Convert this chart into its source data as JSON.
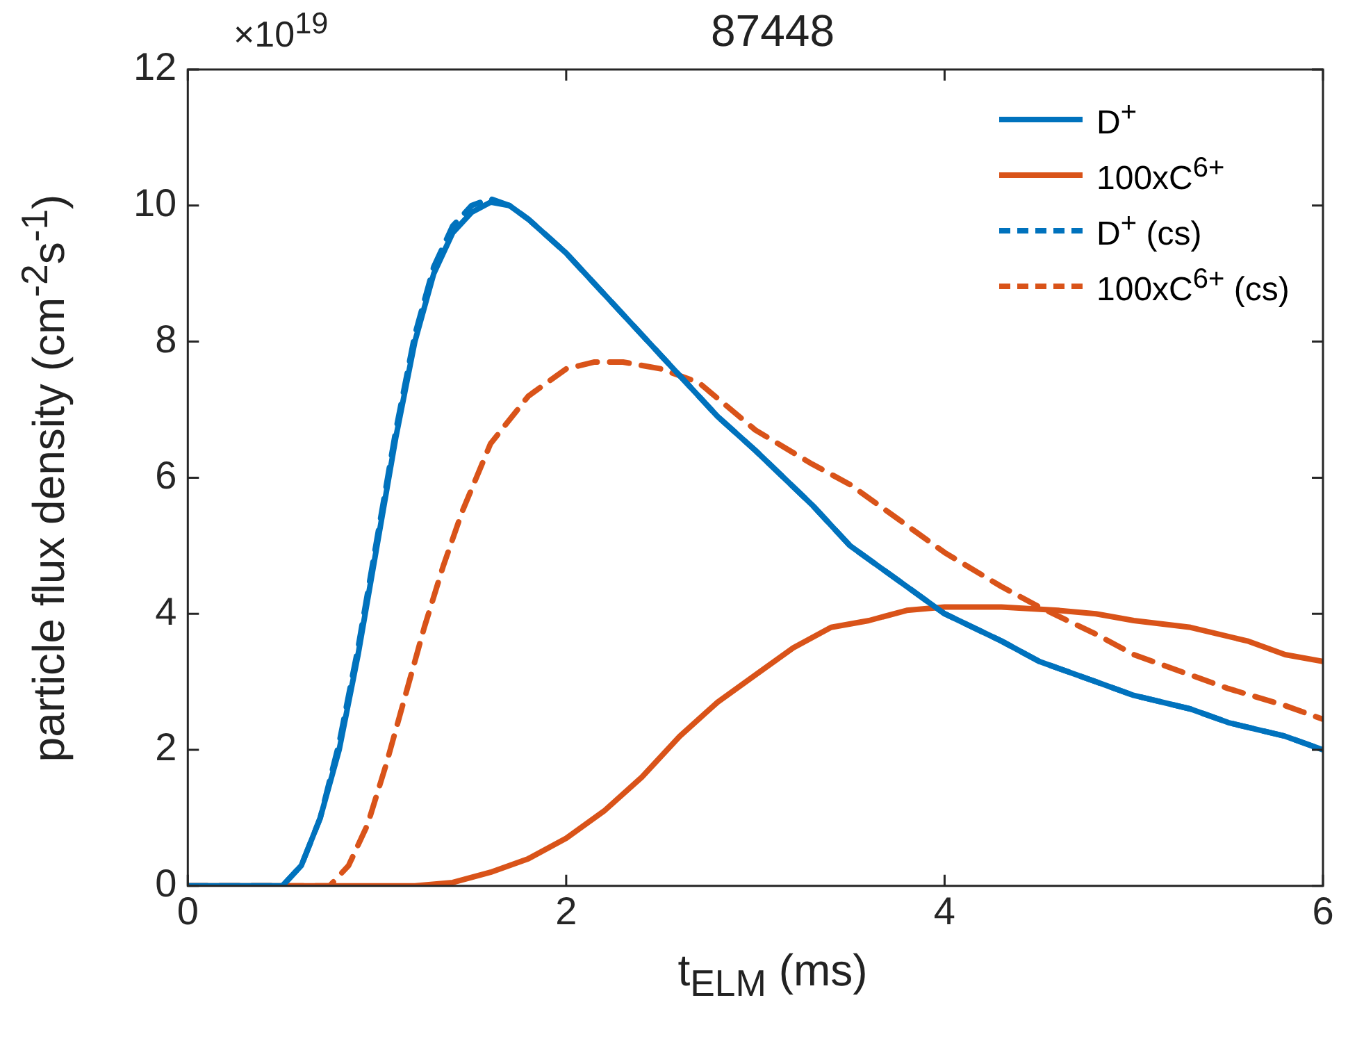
{
  "chart_data": {
    "type": "line",
    "title": "87448",
    "xlabel": "t$_{ELM}$ (ms)",
    "ylabel": "particle flux density (cm$^{-2}$s$^{-1}$)",
    "annotations": [
      "×10$^{19}$"
    ],
    "xlim": [
      0,
      6
    ],
    "xticks": [
      0,
      2,
      4,
      6
    ],
    "ylim": [
      0,
      12
    ],
    "yticks": [
      0,
      2,
      4,
      6,
      8,
      10,
      12
    ],
    "grid": false,
    "legend": "top right",
    "marker": "none",
    "series": [
      {
        "name": "D$^{+}$",
        "color": "#0072bd",
        "line_style": "solid",
        "x": [
          0,
          0.5,
          0.6,
          0.7,
          0.8,
          0.9,
          1.0,
          1.1,
          1.2,
          1.3,
          1.4,
          1.5,
          1.6,
          1.7,
          1.8,
          2.0,
          2.2,
          2.5,
          2.8,
          3.0,
          3.3,
          3.5,
          3.8,
          4.0,
          4.3,
          4.5,
          4.8,
          5.0,
          5.3,
          5.5,
          5.8,
          6.0
        ],
        "values": [
          0,
          0,
          0.3,
          1.0,
          2.0,
          3.4,
          5.0,
          6.6,
          8.0,
          9.0,
          9.6,
          9.9,
          10.05,
          10.0,
          9.8,
          9.3,
          8.7,
          7.8,
          6.9,
          6.4,
          5.6,
          5.0,
          4.4,
          4.0,
          3.6,
          3.3,
          3.0,
          2.8,
          2.6,
          2.4,
          2.2,
          2.0
        ]
      },
      {
        "name": "100xC$^{6+}$",
        "color": "#d95319",
        "line_style": "solid",
        "x": [
          0,
          1.2,
          1.4,
          1.6,
          1.8,
          2.0,
          2.2,
          2.4,
          2.6,
          2.8,
          3.0,
          3.2,
          3.4,
          3.6,
          3.8,
          4.0,
          4.3,
          4.6,
          4.8,
          5.0,
          5.3,
          5.6,
          5.8,
          6.0
        ],
        "values": [
          0,
          0,
          0.05,
          0.2,
          0.4,
          0.7,
          1.1,
          1.6,
          2.2,
          2.7,
          3.1,
          3.5,
          3.8,
          3.9,
          4.05,
          4.1,
          4.1,
          4.05,
          4.0,
          3.9,
          3.8,
          3.6,
          3.4,
          3.3
        ]
      },
      {
        "name": "D$^{+}$ (cs)",
        "color": "#0072bd",
        "line_style": "dashed",
        "x": [
          0,
          0.5,
          0.6,
          0.7,
          0.8,
          0.9,
          1.0,
          1.1,
          1.2,
          1.3,
          1.4,
          1.5,
          1.6,
          1.7,
          1.8,
          2.0,
          2.2,
          2.5,
          2.8,
          3.0,
          3.3,
          3.5,
          3.8,
          4.0,
          4.3,
          4.5,
          4.8,
          5.0,
          5.3,
          5.5,
          5.8,
          6.0
        ],
        "values": [
          0,
          0,
          0.3,
          1.0,
          2.1,
          3.5,
          5.1,
          6.7,
          8.1,
          9.1,
          9.7,
          10.0,
          10.1,
          10.0,
          9.8,
          9.3,
          8.7,
          7.8,
          6.9,
          6.4,
          5.6,
          5.0,
          4.4,
          4.0,
          3.6,
          3.3,
          3.0,
          2.8,
          2.6,
          2.4,
          2.2,
          2.0
        ]
      },
      {
        "name": "100xC$^{6+}$ (cs)",
        "color": "#d95319",
        "line_style": "dashed",
        "x": [
          0,
          0.75,
          0.85,
          0.95,
          1.05,
          1.15,
          1.25,
          1.35,
          1.45,
          1.6,
          1.8,
          2.0,
          2.15,
          2.3,
          2.5,
          2.7,
          3.0,
          3.3,
          3.5,
          3.8,
          4.0,
          4.3,
          4.5,
          4.8,
          5.0,
          5.3,
          5.5,
          5.8,
          6.0
        ],
        "values": [
          0,
          0,
          0.3,
          0.9,
          1.8,
          2.8,
          3.8,
          4.7,
          5.5,
          6.5,
          7.2,
          7.6,
          7.7,
          7.7,
          7.6,
          7.4,
          6.7,
          6.2,
          5.9,
          5.3,
          4.9,
          4.4,
          4.1,
          3.7,
          3.4,
          3.1,
          2.9,
          2.65,
          2.45
        ]
      }
    ]
  }
}
